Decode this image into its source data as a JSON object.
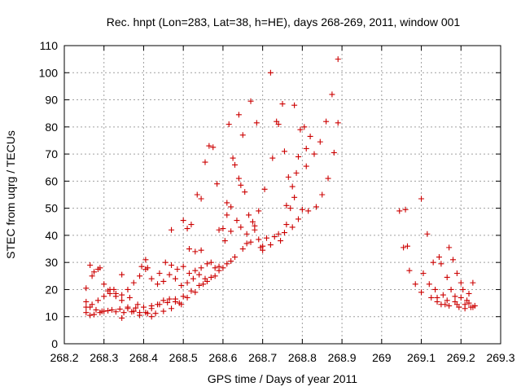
{
  "chart_data": {
    "type": "scatter",
    "title": "Rec. hnpt (Lon=283, Lat=38, h=HE), days 268-269, 2011, window 001",
    "xlabel": "GPS time / Days of year 2011",
    "ylabel": "STEC from uqrg / TECUs",
    "xlim": [
      268.2,
      269.3
    ],
    "ylim": [
      0,
      110
    ],
    "xticks": [
      "268.2",
      "268.3",
      "268.4",
      "268.5",
      "268.6",
      "268.7",
      "268.8",
      "268.9",
      "269",
      "269.1",
      "269.2",
      "269.3"
    ],
    "yticks": [
      "0",
      "10",
      "20",
      "30",
      "40",
      "50",
      "60",
      "70",
      "80",
      "90",
      "100",
      "110"
    ],
    "grid": true,
    "marker": "plus",
    "color": "#cc0000",
    "series": [
      {
        "points": [
          [
            268.255,
            15.5
          ],
          [
            268.265,
            13.5
          ],
          [
            268.28,
            12.5
          ],
          [
            268.295,
            12
          ],
          [
            268.31,
            12.2
          ],
          [
            268.33,
            11.8
          ],
          [
            268.35,
            11.5
          ],
          [
            268.37,
            11.8
          ],
          [
            268.39,
            11.5
          ],
          [
            268.41,
            11.2
          ],
          [
            268.43,
            11.2
          ],
          [
            268.45,
            12
          ],
          [
            268.47,
            13
          ],
          [
            268.49,
            15
          ],
          [
            268.51,
            17
          ],
          [
            268.53,
            19
          ],
          [
            268.55,
            22
          ],
          [
            268.57,
            24.5
          ],
          [
            268.59,
            27
          ],
          [
            268.61,
            29.5
          ],
          [
            268.63,
            32
          ],
          [
            268.65,
            35
          ],
          [
            268.67,
            37.5
          ],
          [
            268.69,
            38.5
          ],
          [
            268.71,
            39
          ],
          [
            268.73,
            39.5
          ],
          [
            268.755,
            41
          ],
          [
            268.775,
            43
          ],
          [
            268.255,
            11.5
          ],
          [
            268.265,
            10.5
          ],
          [
            268.275,
            10.8
          ],
          [
            268.29,
            11.5
          ],
          [
            268.3,
            12
          ],
          [
            268.32,
            12.5
          ],
          [
            268.34,
            12.8
          ],
          [
            268.36,
            13
          ],
          [
            268.38,
            13.2
          ],
          [
            268.4,
            13.5
          ],
          [
            268.42,
            14
          ],
          [
            268.44,
            14.5
          ],
          [
            268.46,
            15.2
          ],
          [
            268.48,
            16.5
          ],
          [
            268.5,
            17.5
          ],
          [
            268.52,
            19.5
          ],
          [
            268.54,
            21.5
          ],
          [
            268.56,
            23
          ],
          [
            268.58,
            25
          ],
          [
            268.6,
            28
          ],
          [
            268.62,
            30.5
          ],
          [
            268.255,
            13.5
          ],
          [
            268.27,
            14.5
          ],
          [
            268.285,
            16
          ],
          [
            268.3,
            17.5
          ],
          [
            268.315,
            18.5
          ],
          [
            268.33,
            17.5
          ],
          [
            268.345,
            16
          ],
          [
            268.36,
            13.5
          ],
          [
            268.375,
            12
          ],
          [
            268.39,
            10.5
          ],
          [
            268.405,
            11.5
          ],
          [
            268.42,
            13
          ],
          [
            268.435,
            14.5
          ],
          [
            268.45,
            16
          ],
          [
            268.465,
            16.5
          ],
          [
            268.48,
            15.5
          ],
          [
            268.495,
            14.5
          ],
          [
            268.255,
            20.5
          ],
          [
            268.27,
            25
          ],
          [
            268.285,
            27.5
          ],
          [
            268.3,
            22
          ],
          [
            268.315,
            20
          ],
          [
            268.33,
            18.5
          ],
          [
            268.345,
            18
          ],
          [
            268.36,
            20
          ],
          [
            268.375,
            22.5
          ],
          [
            268.39,
            25
          ],
          [
            268.405,
            27.5
          ],
          [
            268.42,
            24
          ],
          [
            268.435,
            22
          ],
          [
            268.45,
            23
          ],
          [
            268.465,
            25.5
          ],
          [
            268.48,
            24
          ],
          [
            268.495,
            21.5
          ],
          [
            268.51,
            22.5
          ],
          [
            268.525,
            24
          ],
          [
            268.54,
            25.5
          ],
          [
            268.555,
            24
          ],
          [
            268.265,
            29
          ],
          [
            268.275,
            26.5
          ],
          [
            268.29,
            28
          ],
          [
            268.31,
            19.5
          ],
          [
            268.325,
            20
          ],
          [
            268.345,
            25.5
          ],
          [
            268.365,
            17
          ],
          [
            268.385,
            14.5
          ],
          [
            268.395,
            28.5
          ],
          [
            268.405,
            31
          ],
          [
            268.41,
            28
          ],
          [
            268.42,
            10
          ],
          [
            268.345,
            9.5
          ],
          [
            268.44,
            26
          ],
          [
            268.455,
            30
          ],
          [
            268.47,
            29
          ],
          [
            268.485,
            27.5
          ],
          [
            268.5,
            28.5
          ],
          [
            268.515,
            26
          ],
          [
            268.53,
            27
          ],
          [
            268.545,
            28
          ],
          [
            268.56,
            29.5
          ],
          [
            268.57,
            30
          ],
          [
            268.58,
            28
          ],
          [
            268.59,
            28.5
          ],
          [
            268.47,
            42
          ],
          [
            268.5,
            45.5
          ],
          [
            268.51,
            42.5
          ],
          [
            268.52,
            44
          ],
          [
            268.515,
            35
          ],
          [
            268.53,
            34
          ],
          [
            268.545,
            34.5
          ],
          [
            268.535,
            55
          ],
          [
            268.545,
            53.5
          ],
          [
            268.555,
            67
          ],
          [
            268.565,
            73
          ],
          [
            268.575,
            72.5
          ],
          [
            268.585,
            59
          ],
          [
            268.59,
            42
          ],
          [
            268.6,
            42.5
          ],
          [
            268.605,
            38
          ],
          [
            268.61,
            52
          ],
          [
            268.615,
            81
          ],
          [
            268.62,
            50.5
          ],
          [
            268.625,
            68.5
          ],
          [
            268.63,
            66
          ],
          [
            268.635,
            45.5
          ],
          [
            268.64,
            61
          ],
          [
            268.64,
            84.5
          ],
          [
            268.645,
            58.5
          ],
          [
            268.65,
            77
          ],
          [
            268.655,
            56
          ],
          [
            268.66,
            40.5
          ],
          [
            268.665,
            47.5
          ],
          [
            268.67,
            89.5
          ],
          [
            268.675,
            45
          ],
          [
            268.68,
            43.5
          ],
          [
            268.685,
            81.5
          ],
          [
            268.69,
            49
          ],
          [
            268.695,
            35.5
          ],
          [
            268.7,
            34.5
          ],
          [
            268.705,
            57
          ],
          [
            268.72,
            100
          ],
          [
            268.725,
            68.5
          ],
          [
            268.735,
            82
          ],
          [
            268.74,
            81
          ],
          [
            268.745,
            38
          ],
          [
            268.75,
            88.5
          ],
          [
            268.755,
            71
          ],
          [
            268.76,
            44
          ],
          [
            268.765,
            61.5
          ],
          [
            268.775,
            58
          ],
          [
            268.78,
            88
          ],
          [
            268.785,
            63
          ],
          [
            268.79,
            69
          ],
          [
            268.795,
            79
          ],
          [
            268.8,
            49.5
          ],
          [
            268.805,
            80
          ],
          [
            268.81,
            72
          ],
          [
            268.81,
            65.5
          ],
          [
            268.815,
            49
          ],
          [
            268.82,
            76.5
          ],
          [
            268.83,
            70
          ],
          [
            268.835,
            50.5
          ],
          [
            268.845,
            74.5
          ],
          [
            268.85,
            55
          ],
          [
            268.86,
            82
          ],
          [
            268.865,
            61
          ],
          [
            268.875,
            92
          ],
          [
            268.88,
            70.5
          ],
          [
            268.89,
            105
          ],
          [
            268.89,
            81.5
          ],
          [
            268.61,
            47.5
          ],
          [
            268.62,
            41.5
          ],
          [
            268.645,
            43
          ],
          [
            268.66,
            37
          ],
          [
            268.68,
            42
          ],
          [
            268.7,
            36
          ],
          [
            268.72,
            36.5
          ],
          [
            268.74,
            40.5
          ],
          [
            268.76,
            51
          ],
          [
            268.77,
            50
          ],
          [
            268.78,
            54
          ],
          [
            268.79,
            46
          ],
          [
            269.045,
            49
          ],
          [
            269.06,
            49.5
          ],
          [
            269.055,
            35.5
          ],
          [
            269.065,
            36
          ],
          [
            269.07,
            27
          ],
          [
            269.085,
            22
          ],
          [
            269.1,
            53.5
          ],
          [
            269.105,
            26
          ],
          [
            269.1,
            19
          ],
          [
            269.115,
            40.5
          ],
          [
            269.12,
            22
          ],
          [
            269.125,
            17
          ],
          [
            269.13,
            30
          ],
          [
            269.135,
            20
          ],
          [
            269.14,
            15.5
          ],
          [
            269.145,
            32
          ],
          [
            269.15,
            29.5
          ],
          [
            269.155,
            18
          ],
          [
            269.16,
            14.5
          ],
          [
            269.165,
            24.5
          ],
          [
            269.17,
            35.5
          ],
          [
            269.175,
            20
          ],
          [
            269.18,
            31
          ],
          [
            269.185,
            17.5
          ],
          [
            269.19,
            26
          ],
          [
            269.195,
            13.5
          ],
          [
            269.2,
            22.5
          ],
          [
            269.205,
            20
          ],
          [
            269.21,
            14.5
          ],
          [
            269.215,
            16
          ],
          [
            269.22,
            18.5
          ],
          [
            269.225,
            13.5
          ],
          [
            269.23,
            22.5
          ],
          [
            269.235,
            14
          ],
          [
            269.15,
            14.5
          ],
          [
            269.17,
            14
          ],
          [
            269.19,
            14.5
          ],
          [
            269.21,
            13
          ],
          [
            269.23,
            13.5
          ],
          [
            269.14,
            17
          ],
          [
            269.165,
            16
          ],
          [
            269.185,
            15.5
          ],
          [
            269.2,
            17
          ],
          [
            269.22,
            15
          ]
        ]
      }
    ]
  }
}
